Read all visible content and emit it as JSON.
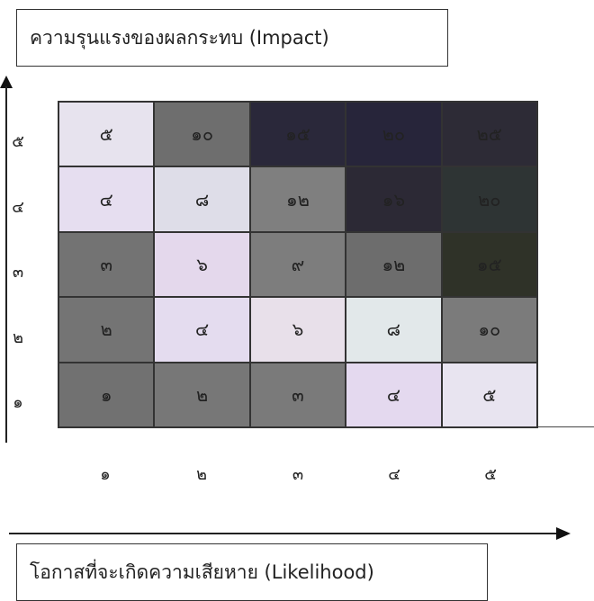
{
  "impact_label": "ความรุนแรงของผลกระทบ (Impact)",
  "likelihood_label": "โอกาสที่จะเกิดความเสียหาย (Likelihood)",
  "y_ticks": [
    "๕",
    "๔",
    "๓",
    "๒",
    "๑"
  ],
  "x_ticks": [
    "๑",
    "๒",
    "๓",
    "๔",
    "๕"
  ],
  "matrix": [
    [
      "๕",
      "๑๐",
      "๑๕",
      "๒๐",
      "๒๕"
    ],
    [
      "๔",
      "๘",
      "๑๒",
      "๑๖",
      "๒๐"
    ],
    [
      "๓",
      "๖",
      "๙",
      "๑๒",
      "๑๕"
    ],
    [
      "๒",
      "๔",
      "๖",
      "๘",
      "๑๐"
    ],
    [
      "๑",
      "๒",
      "๓",
      "๔",
      "๕"
    ]
  ],
  "colors": {
    "light": "#e8e2ef",
    "lavender": "#ddd0e8",
    "medium_gray": "#7b7b7b",
    "dark_gray": "#5e5e5e",
    "very_dark": "#2c2a36"
  },
  "cell_colors": [
    [
      "#e7e3ee",
      "#6e6e6e",
      "#2a283a",
      "#27253a",
      "#2d2b36"
    ],
    [
      "#e6def0",
      "#dedde8",
      "#7f7f7f",
      "#2c2935",
      "#2e3434"
    ],
    [
      "#737373",
      "#e4d8ec",
      "#7d7d7d",
      "#6d6d6d",
      "#2f3228"
    ],
    [
      "#747474",
      "#e4dcef",
      "#e8e0ea",
      "#e2e8ea",
      "#7b7b7b"
    ],
    [
      "#717171",
      "#777777",
      "#7a7a7a",
      "#e4d9ef",
      "#e8e4f0"
    ]
  ]
}
